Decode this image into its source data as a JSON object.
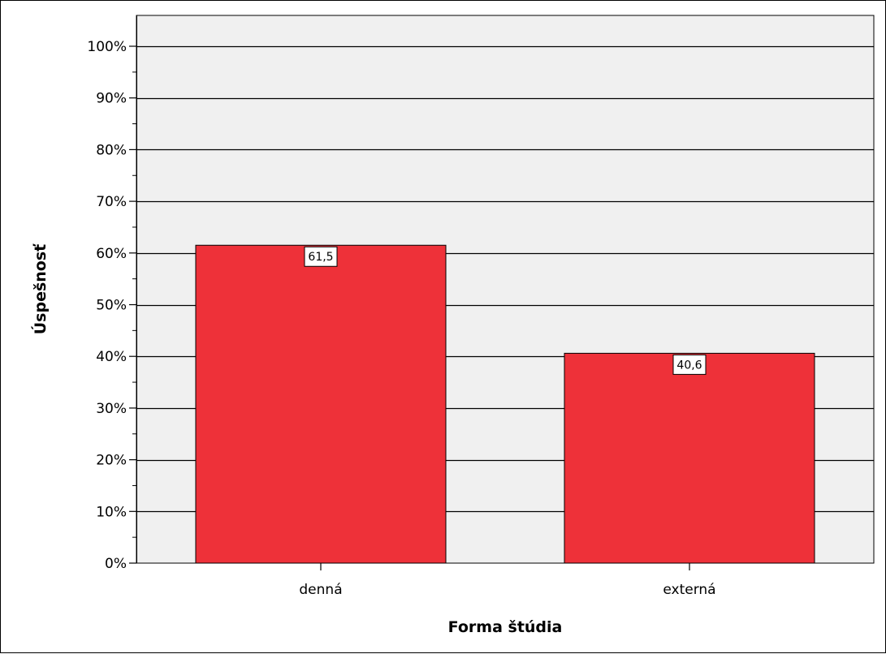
{
  "chart_data": {
    "type": "bar",
    "categories": [
      "denná",
      "externá"
    ],
    "values": [
      61.5,
      40.6
    ],
    "data_labels": [
      "61,5",
      "40,6"
    ],
    "title": "",
    "xlabel": "Forma štúdia",
    "ylabel": "Úspešnosť",
    "ylim": [
      0,
      100
    ],
    "y_ticks": [
      "0%",
      "10%",
      "20%",
      "30%",
      "40%",
      "50%",
      "60%",
      "70%",
      "80%",
      "90%",
      "100%"
    ],
    "grid": true,
    "legend": "none",
    "colors": {
      "bar": "#EE3139",
      "plot_background": "#F0F0F0",
      "gridline": "#000000"
    }
  }
}
